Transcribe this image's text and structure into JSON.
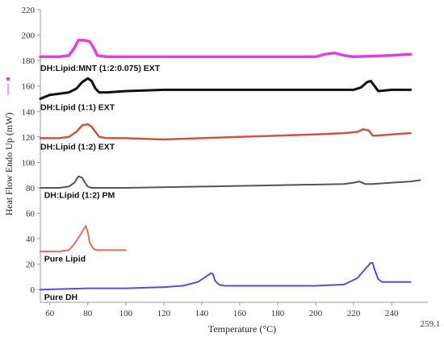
{
  "chart_data": {
    "type": "line",
    "xlabel": "Temperature (°C)",
    "ylabel": "Heat Flow Endo Up (mW)",
    "xlim": [
      55,
      259.1
    ],
    "ylim": [
      -10,
      220
    ],
    "x_ticks": [
      60,
      80,
      100,
      120,
      140,
      160,
      180,
      200,
      220,
      240
    ],
    "x_tick_labels": [
      "60",
      "80",
      "100",
      "120",
      "140",
      "160",
      "180",
      "200",
      "220",
      "240"
    ],
    "x_end_label": "259.1",
    "y_ticks": [
      0,
      20,
      40,
      60,
      80,
      100,
      120,
      140,
      160,
      180,
      200,
      220
    ],
    "y_tick_labels": [
      "0",
      "20",
      "40",
      "60",
      "80",
      "100",
      "120",
      "140",
      "160",
      "180",
      "200",
      "220"
    ],
    "grid": false,
    "legend": "none",
    "series": [
      {
        "name": "DH:Lipid:MNT (1:2:0.075) EXT",
        "color": "#e040e0",
        "width": 3.5,
        "x": [
          55,
          65,
          70,
          73,
          75,
          78,
          81,
          83,
          85,
          90,
          100,
          150,
          200,
          205,
          210,
          215,
          220,
          240,
          250
        ],
        "y": [
          183,
          183,
          184,
          190,
          196,
          196,
          195,
          190,
          184,
          183,
          183,
          183,
          183,
          185,
          186,
          184,
          183,
          184,
          185
        ]
      },
      {
        "name": "DH:Lipid (1:1) EXT",
        "color": "#111111",
        "width": 3,
        "x": [
          55,
          60,
          65,
          70,
          74,
          77,
          80,
          82,
          84,
          86,
          90,
          100,
          120,
          140,
          160,
          180,
          200,
          220,
          224,
          227,
          229,
          231,
          233,
          240,
          250
        ],
        "y": [
          150,
          153,
          154,
          155,
          158,
          163,
          166,
          164,
          158,
          155,
          155,
          156,
          157,
          157,
          157,
          157,
          157,
          157,
          159,
          163,
          164,
          160,
          156,
          157,
          157
        ]
      },
      {
        "name": "DH:Lipid (1:2) EXT",
        "color": "#cc5544",
        "width": 2.5,
        "x": [
          55,
          65,
          70,
          74,
          77,
          80,
          82,
          84,
          86,
          90,
          100,
          120,
          140,
          160,
          180,
          200,
          215,
          222,
          225,
          228,
          230,
          232,
          240,
          250
        ],
        "y": [
          119,
          119,
          120,
          124,
          129,
          130,
          128,
          124,
          120,
          119,
          119,
          118,
          119,
          120,
          121,
          122,
          123,
          124,
          126,
          125,
          121,
          121,
          122,
          123
        ]
      },
      {
        "name": "DH:Lipid (1:2)  PM",
        "color": "#555555",
        "width": 2,
        "x": [
          55,
          65,
          70,
          73,
          75,
          77,
          79,
          80,
          82,
          90,
          100,
          140,
          180,
          215,
          220,
          223,
          226,
          230,
          240,
          250,
          255
        ],
        "y": [
          80,
          80,
          81,
          84,
          89,
          88,
          83,
          81,
          80,
          80,
          80,
          81,
          82,
          83,
          84,
          85,
          83,
          83,
          84,
          85,
          86
        ]
      },
      {
        "name": "Pure Lipid",
        "color": "#e07060",
        "width": 2,
        "x": [
          55,
          65,
          70,
          73,
          76,
          78,
          79,
          80,
          81,
          83,
          85,
          90,
          100
        ],
        "y": [
          30,
          30,
          31,
          36,
          43,
          48,
          50,
          45,
          37,
          32,
          31,
          31,
          31
        ]
      },
      {
        "name": "Pure DH",
        "color": "#5050dd",
        "width": 2,
        "x": [
          55,
          80,
          100,
          120,
          130,
          138,
          142,
          145,
          146,
          147,
          149,
          152,
          160,
          180,
          200,
          215,
          222,
          226,
          229,
          230,
          231,
          233,
          235,
          240,
          250
        ],
        "y": [
          0,
          1,
          1,
          2,
          3,
          6,
          10,
          13,
          12,
          7,
          4,
          3,
          3,
          3,
          3,
          4,
          9,
          16,
          21,
          21,
          16,
          8,
          6,
          6,
          6
        ]
      }
    ],
    "labels": [
      {
        "text": "DH:Lipid:MNT (1:2:0.075) EXT",
        "x": 55,
        "y": 172
      },
      {
        "text": "DH:Lipid (1:1) EXT",
        "x": 55,
        "y": 141
      },
      {
        "text": "DH:Lipid (1:2) EXT",
        "x": 55,
        "y": 110
      },
      {
        "text": "DH:Lipid (1:2)  PM",
        "x": 57,
        "y": 72
      },
      {
        "text": "Pure Lipid",
        "x": 57,
        "y": 22
      },
      {
        "text": "Pure DH",
        "x": 57,
        "y": -8
      }
    ]
  }
}
